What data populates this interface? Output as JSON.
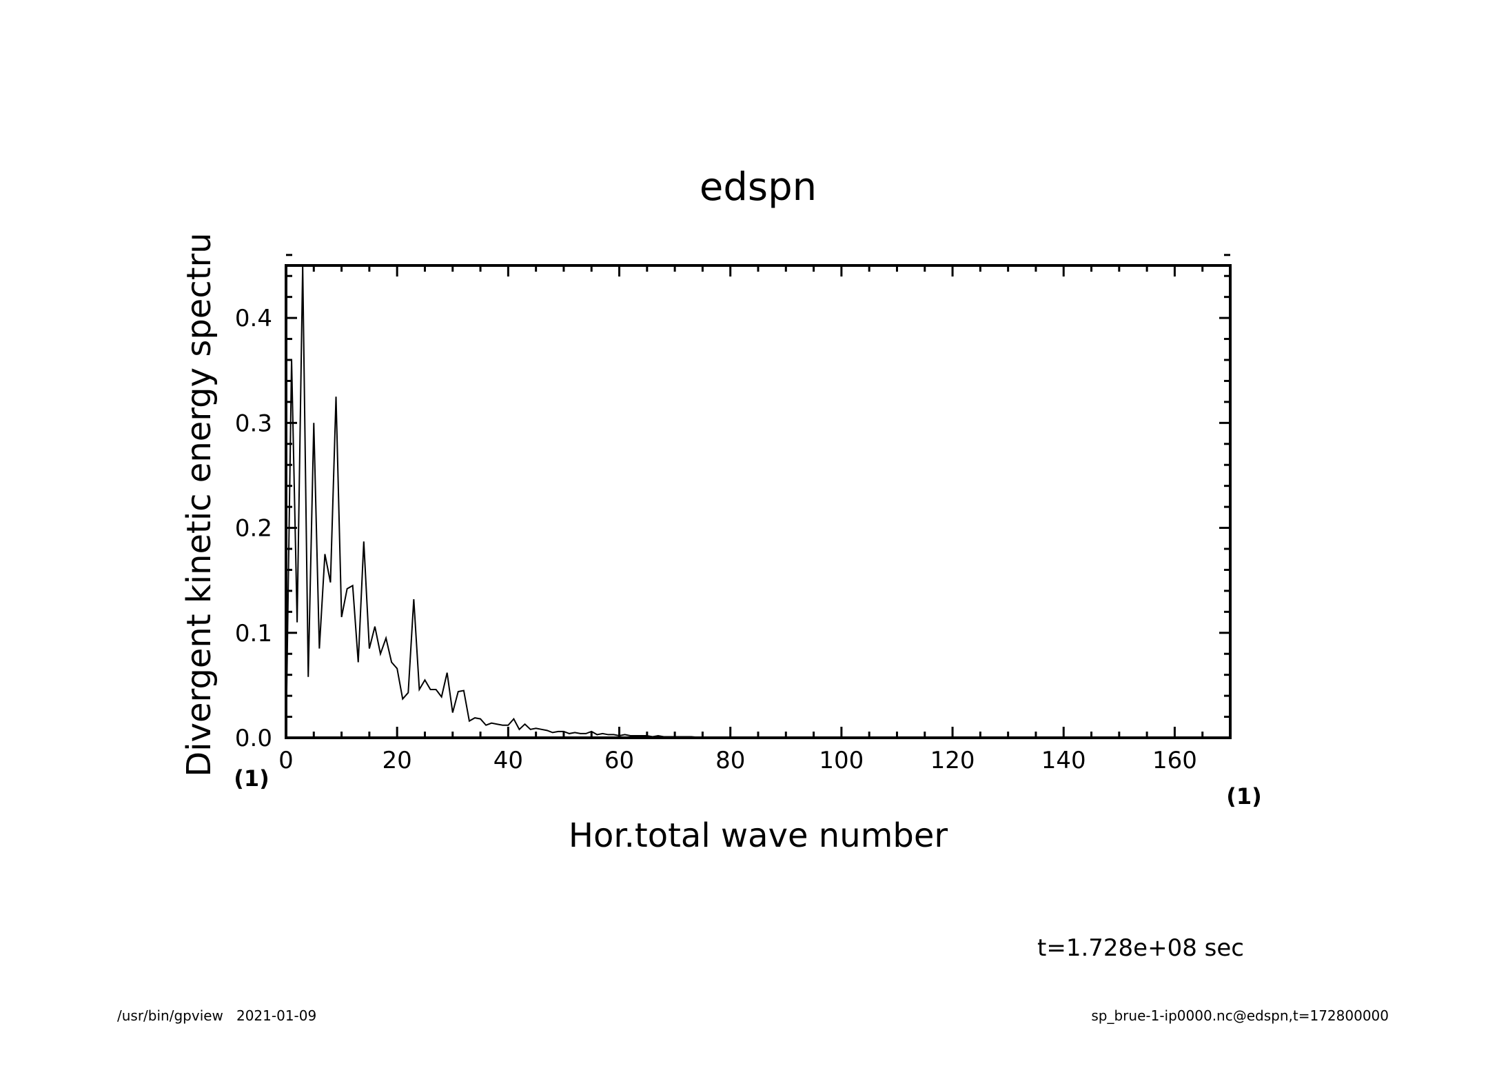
{
  "chart_data": {
    "type": "line",
    "title": "edspn",
    "xlabel": "Hor.total wave number",
    "ylabel": "Divergent kinetic energy spectru",
    "x_unit": "(1)",
    "y_unit": "(1)",
    "xlim": [
      0,
      170
    ],
    "ylim": [
      0,
      0.45
    ],
    "xticks": [
      "0",
      "20",
      "40",
      "60",
      "80",
      "100",
      "120",
      "140",
      "160"
    ],
    "yticks": [
      "0.0",
      "0.1",
      "0.2",
      "0.3",
      "0.4"
    ],
    "x": [
      0,
      1,
      2,
      3,
      4,
      5,
      6,
      7,
      8,
      9,
      10,
      11,
      12,
      13,
      14,
      15,
      16,
      17,
      18,
      19,
      20,
      21,
      22,
      23,
      24,
      25,
      26,
      27,
      28,
      29,
      30,
      31,
      32,
      33,
      34,
      35,
      36,
      37,
      38,
      39,
      40,
      41,
      42,
      43,
      44,
      45,
      46,
      47,
      48,
      49,
      50,
      51,
      52,
      53,
      54,
      55,
      56,
      57,
      58,
      59,
      60,
      61,
      62,
      63,
      64,
      65,
      66,
      67,
      68,
      69,
      70,
      71,
      72,
      73,
      74,
      75,
      76,
      77,
      78,
      79,
      80,
      90,
      100,
      110,
      120,
      130,
      140,
      150,
      160,
      170
    ],
    "values": [
      0.0,
      0.36,
      0.11,
      0.45,
      0.058,
      0.3,
      0.085,
      0.175,
      0.148,
      0.325,
      0.115,
      0.142,
      0.145,
      0.072,
      0.187,
      0.085,
      0.106,
      0.08,
      0.095,
      0.072,
      0.066,
      0.037,
      0.043,
      0.132,
      0.046,
      0.055,
      0.046,
      0.046,
      0.039,
      0.062,
      0.024,
      0.044,
      0.045,
      0.016,
      0.019,
      0.018,
      0.012,
      0.014,
      0.013,
      0.012,
      0.012,
      0.018,
      0.008,
      0.013,
      0.008,
      0.009,
      0.008,
      0.007,
      0.005,
      0.006,
      0.006,
      0.004,
      0.005,
      0.004,
      0.004,
      0.006,
      0.003,
      0.004,
      0.003,
      0.003,
      0.002,
      0.003,
      0.002,
      0.002,
      0.002,
      0.002,
      0.001,
      0.002,
      0.001,
      0.001,
      0.001,
      0.001,
      0.001,
      0.001,
      0.0005,
      0.0005,
      0.0005,
      0.0005,
      0.0003,
      0.0003,
      0.0002,
      0.0001,
      0.0001,
      0.0,
      0.0,
      0.0,
      0.0,
      0.0,
      0.0,
      0.0
    ],
    "grid": false,
    "legend": false
  },
  "annotations": {
    "time": "t=1.728e+08 sec",
    "footer_left": "/usr/bin/gpview   2021-01-09",
    "footer_right": "sp_brue-1-ip0000.nc@edspn,t=172800000"
  }
}
